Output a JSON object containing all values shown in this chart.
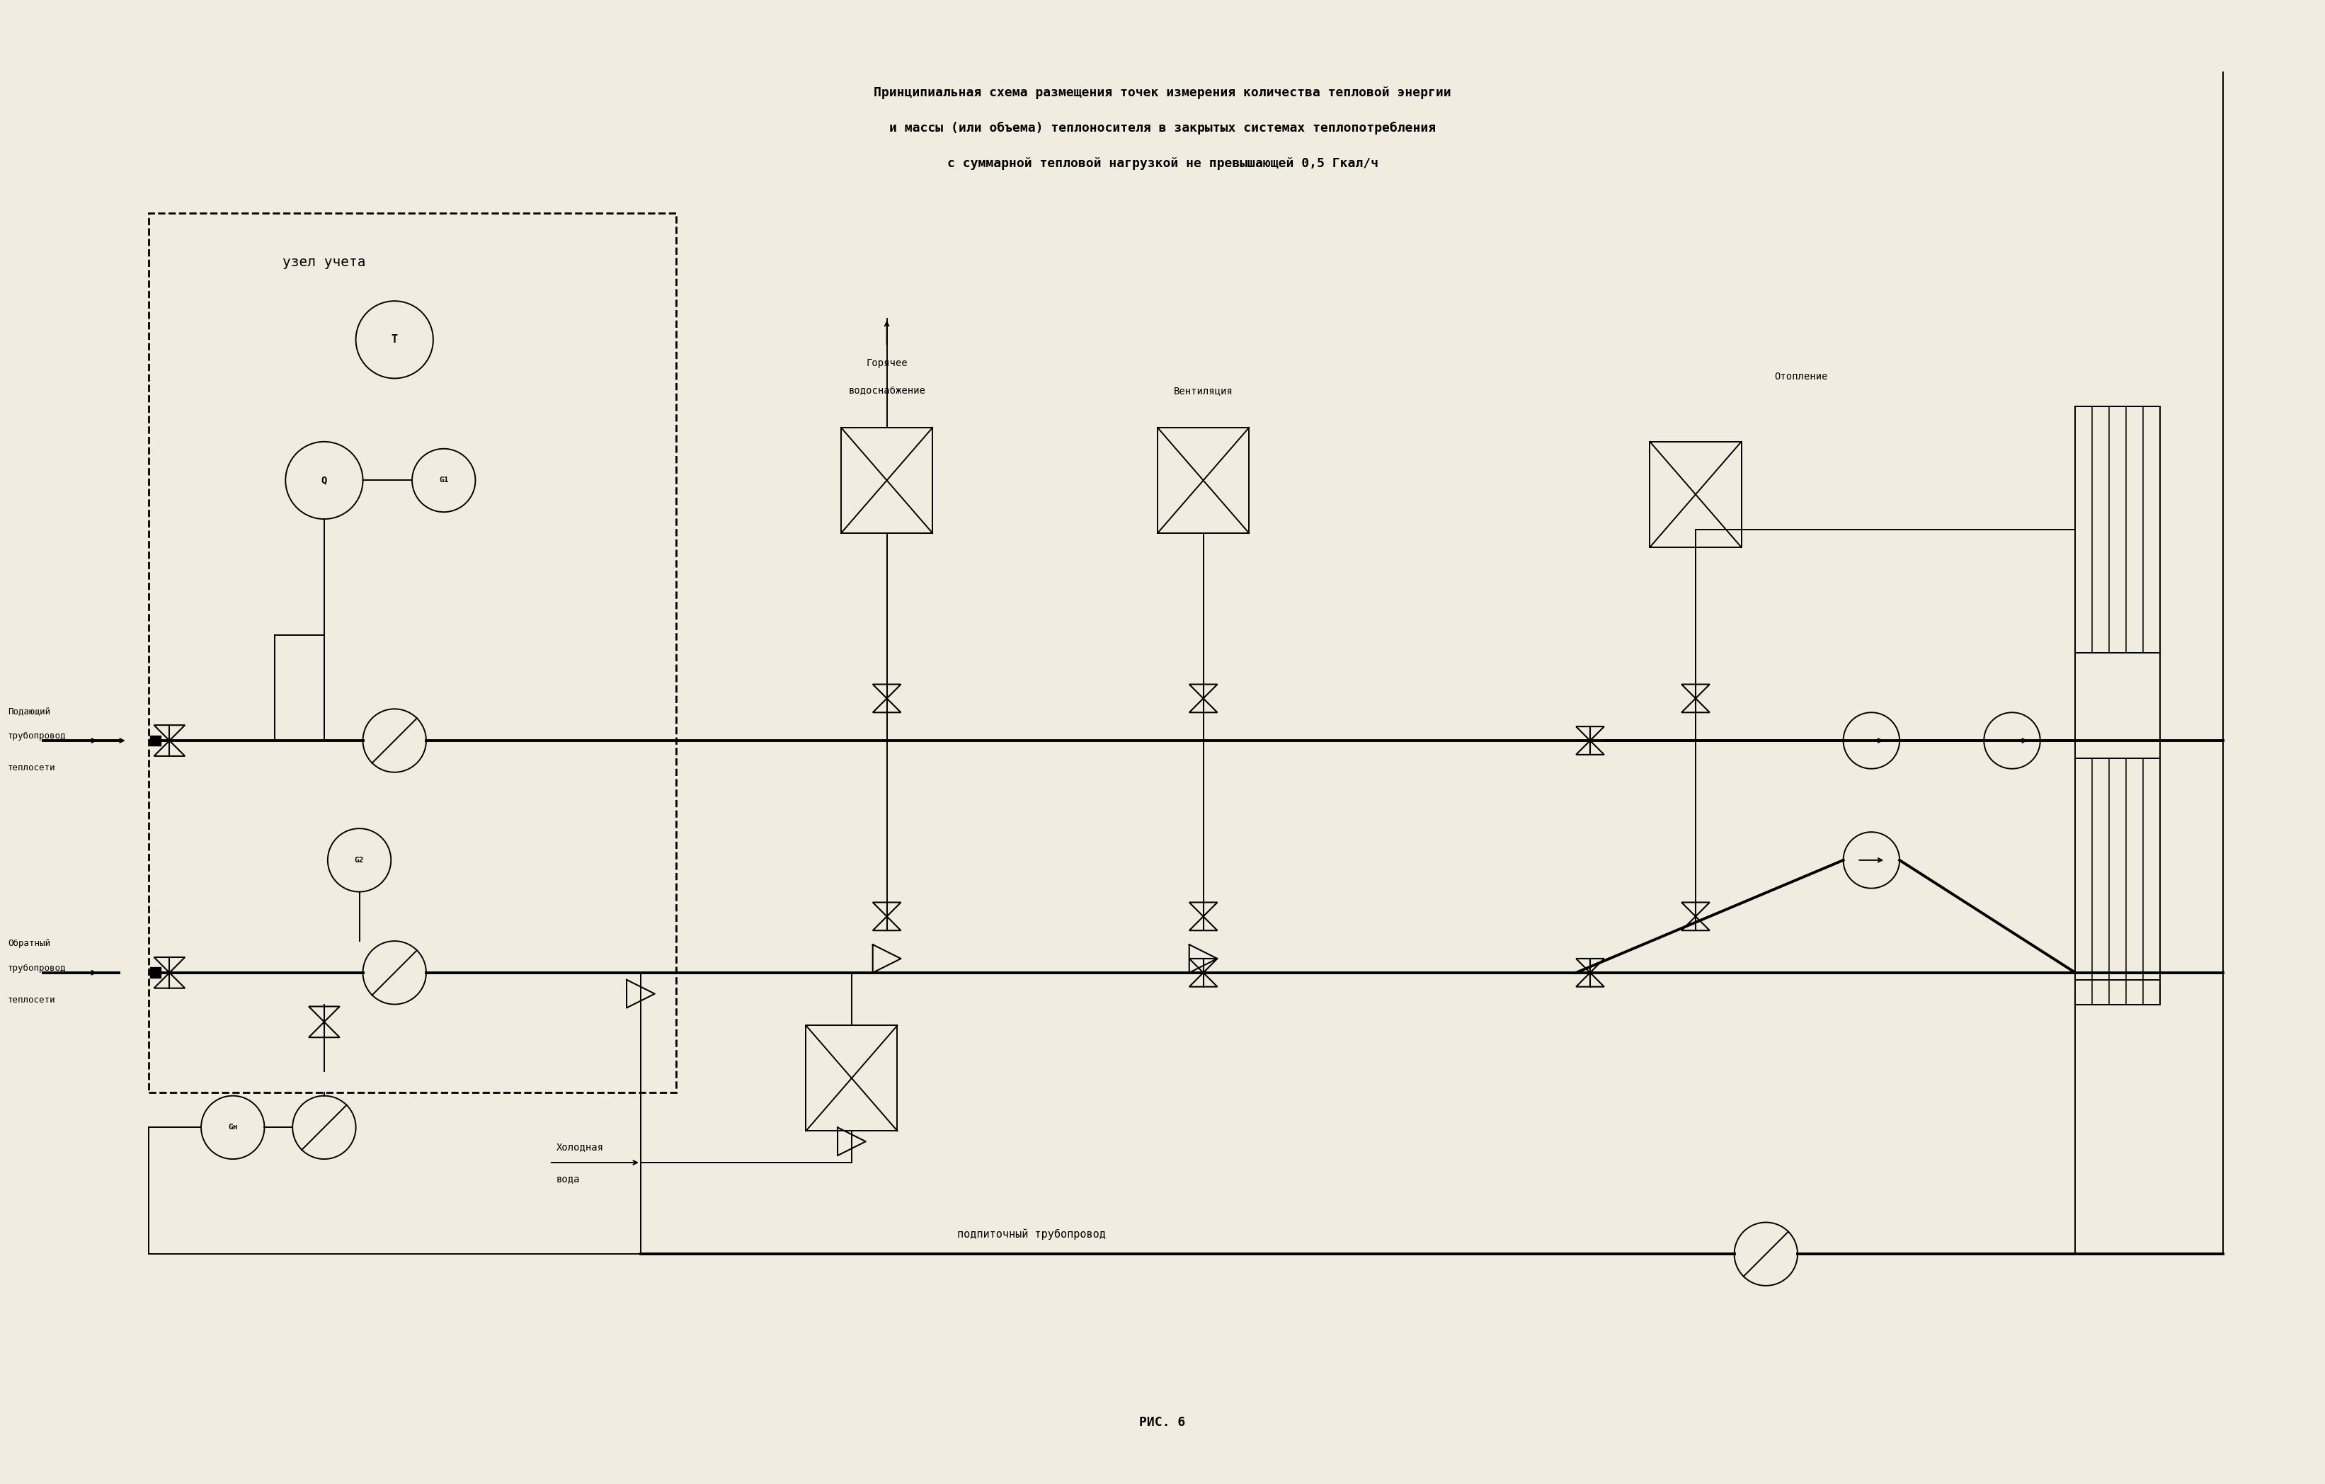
{
  "title_line1": "Принципиальная схема размещения точек измерения количества тепловой энергии",
  "title_line2": "и массы (или объема) теплоносителя в закрытых системах теплопотребления",
  "title_line3": "с суммарной тепловой нагрузкой не превышающей 0,5 Гкал/ч",
  "caption": "РИС. 6",
  "bg_color": "#f0ede0",
  "line_color": "#000000",
  "text_color": "#000000",
  "fig_width": 32.84,
  "fig_height": 20.96
}
